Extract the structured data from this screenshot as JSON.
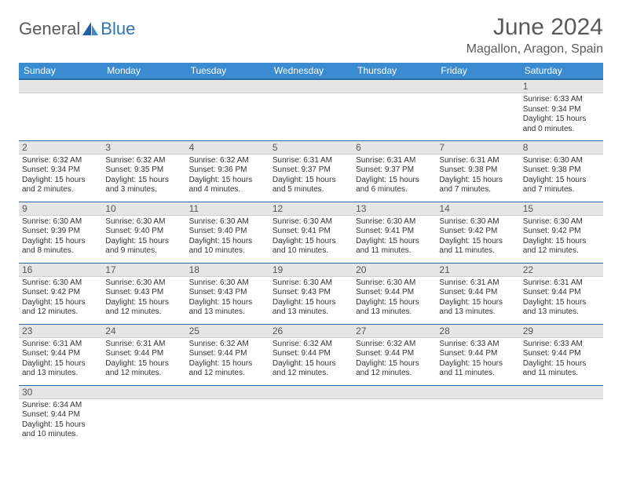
{
  "logo": {
    "text1": "General",
    "text2": "Blue"
  },
  "header": {
    "title": "June 2024",
    "location": "Magallon, Aragon, Spain"
  },
  "colors": {
    "header_bg": "#3b8bd0",
    "header_border": "#2e6aa8",
    "row_border": "#2e6aa8",
    "daynum_bg": "#e6e6e6",
    "text": "#333333",
    "logo_gray": "#5a5a5a",
    "logo_blue": "#2e75b6"
  },
  "daysOfWeek": [
    "Sunday",
    "Monday",
    "Tuesday",
    "Wednesday",
    "Thursday",
    "Friday",
    "Saturday"
  ],
  "weeks": [
    [
      {
        "n": "",
        "empty": true
      },
      {
        "n": "",
        "empty": true
      },
      {
        "n": "",
        "empty": true
      },
      {
        "n": "",
        "empty": true
      },
      {
        "n": "",
        "empty": true
      },
      {
        "n": "",
        "empty": true
      },
      {
        "n": "1",
        "sr": "Sunrise: 6:33 AM",
        "ss": "Sunset: 9:34 PM",
        "dl1": "Daylight: 15 hours",
        "dl2": "and 0 minutes."
      }
    ],
    [
      {
        "n": "2",
        "sr": "Sunrise: 6:32 AM",
        "ss": "Sunset: 9:34 PM",
        "dl1": "Daylight: 15 hours",
        "dl2": "and 2 minutes."
      },
      {
        "n": "3",
        "sr": "Sunrise: 6:32 AM",
        "ss": "Sunset: 9:35 PM",
        "dl1": "Daylight: 15 hours",
        "dl2": "and 3 minutes."
      },
      {
        "n": "4",
        "sr": "Sunrise: 6:32 AM",
        "ss": "Sunset: 9:36 PM",
        "dl1": "Daylight: 15 hours",
        "dl2": "and 4 minutes."
      },
      {
        "n": "5",
        "sr": "Sunrise: 6:31 AM",
        "ss": "Sunset: 9:37 PM",
        "dl1": "Daylight: 15 hours",
        "dl2": "and 5 minutes."
      },
      {
        "n": "6",
        "sr": "Sunrise: 6:31 AM",
        "ss": "Sunset: 9:37 PM",
        "dl1": "Daylight: 15 hours",
        "dl2": "and 6 minutes."
      },
      {
        "n": "7",
        "sr": "Sunrise: 6:31 AM",
        "ss": "Sunset: 9:38 PM",
        "dl1": "Daylight: 15 hours",
        "dl2": "and 7 minutes."
      },
      {
        "n": "8",
        "sr": "Sunrise: 6:30 AM",
        "ss": "Sunset: 9:38 PM",
        "dl1": "Daylight: 15 hours",
        "dl2": "and 7 minutes."
      }
    ],
    [
      {
        "n": "9",
        "sr": "Sunrise: 6:30 AM",
        "ss": "Sunset: 9:39 PM",
        "dl1": "Daylight: 15 hours",
        "dl2": "and 8 minutes."
      },
      {
        "n": "10",
        "sr": "Sunrise: 6:30 AM",
        "ss": "Sunset: 9:40 PM",
        "dl1": "Daylight: 15 hours",
        "dl2": "and 9 minutes."
      },
      {
        "n": "11",
        "sr": "Sunrise: 6:30 AM",
        "ss": "Sunset: 9:40 PM",
        "dl1": "Daylight: 15 hours",
        "dl2": "and 10 minutes."
      },
      {
        "n": "12",
        "sr": "Sunrise: 6:30 AM",
        "ss": "Sunset: 9:41 PM",
        "dl1": "Daylight: 15 hours",
        "dl2": "and 10 minutes."
      },
      {
        "n": "13",
        "sr": "Sunrise: 6:30 AM",
        "ss": "Sunset: 9:41 PM",
        "dl1": "Daylight: 15 hours",
        "dl2": "and 11 minutes."
      },
      {
        "n": "14",
        "sr": "Sunrise: 6:30 AM",
        "ss": "Sunset: 9:42 PM",
        "dl1": "Daylight: 15 hours",
        "dl2": "and 11 minutes."
      },
      {
        "n": "15",
        "sr": "Sunrise: 6:30 AM",
        "ss": "Sunset: 9:42 PM",
        "dl1": "Daylight: 15 hours",
        "dl2": "and 12 minutes."
      }
    ],
    [
      {
        "n": "16",
        "sr": "Sunrise: 6:30 AM",
        "ss": "Sunset: 9:42 PM",
        "dl1": "Daylight: 15 hours",
        "dl2": "and 12 minutes."
      },
      {
        "n": "17",
        "sr": "Sunrise: 6:30 AM",
        "ss": "Sunset: 9:43 PM",
        "dl1": "Daylight: 15 hours",
        "dl2": "and 12 minutes."
      },
      {
        "n": "18",
        "sr": "Sunrise: 6:30 AM",
        "ss": "Sunset: 9:43 PM",
        "dl1": "Daylight: 15 hours",
        "dl2": "and 13 minutes."
      },
      {
        "n": "19",
        "sr": "Sunrise: 6:30 AM",
        "ss": "Sunset: 9:43 PM",
        "dl1": "Daylight: 15 hours",
        "dl2": "and 13 minutes."
      },
      {
        "n": "20",
        "sr": "Sunrise: 6:30 AM",
        "ss": "Sunset: 9:44 PM",
        "dl1": "Daylight: 15 hours",
        "dl2": "and 13 minutes."
      },
      {
        "n": "21",
        "sr": "Sunrise: 6:31 AM",
        "ss": "Sunset: 9:44 PM",
        "dl1": "Daylight: 15 hours",
        "dl2": "and 13 minutes."
      },
      {
        "n": "22",
        "sr": "Sunrise: 6:31 AM",
        "ss": "Sunset: 9:44 PM",
        "dl1": "Daylight: 15 hours",
        "dl2": "and 13 minutes."
      }
    ],
    [
      {
        "n": "23",
        "sr": "Sunrise: 6:31 AM",
        "ss": "Sunset: 9:44 PM",
        "dl1": "Daylight: 15 hours",
        "dl2": "and 13 minutes."
      },
      {
        "n": "24",
        "sr": "Sunrise: 6:31 AM",
        "ss": "Sunset: 9:44 PM",
        "dl1": "Daylight: 15 hours",
        "dl2": "and 12 minutes."
      },
      {
        "n": "25",
        "sr": "Sunrise: 6:32 AM",
        "ss": "Sunset: 9:44 PM",
        "dl1": "Daylight: 15 hours",
        "dl2": "and 12 minutes."
      },
      {
        "n": "26",
        "sr": "Sunrise: 6:32 AM",
        "ss": "Sunset: 9:44 PM",
        "dl1": "Daylight: 15 hours",
        "dl2": "and 12 minutes."
      },
      {
        "n": "27",
        "sr": "Sunrise: 6:32 AM",
        "ss": "Sunset: 9:44 PM",
        "dl1": "Daylight: 15 hours",
        "dl2": "and 12 minutes."
      },
      {
        "n": "28",
        "sr": "Sunrise: 6:33 AM",
        "ss": "Sunset: 9:44 PM",
        "dl1": "Daylight: 15 hours",
        "dl2": "and 11 minutes."
      },
      {
        "n": "29",
        "sr": "Sunrise: 6:33 AM",
        "ss": "Sunset: 9:44 PM",
        "dl1": "Daylight: 15 hours",
        "dl2": "and 11 minutes."
      }
    ],
    [
      {
        "n": "30",
        "sr": "Sunrise: 6:34 AM",
        "ss": "Sunset: 9:44 PM",
        "dl1": "Daylight: 15 hours",
        "dl2": "and 10 minutes."
      },
      {
        "n": "",
        "empty": true
      },
      {
        "n": "",
        "empty": true
      },
      {
        "n": "",
        "empty": true
      },
      {
        "n": "",
        "empty": true
      },
      {
        "n": "",
        "empty": true
      },
      {
        "n": "",
        "empty": true
      }
    ]
  ]
}
